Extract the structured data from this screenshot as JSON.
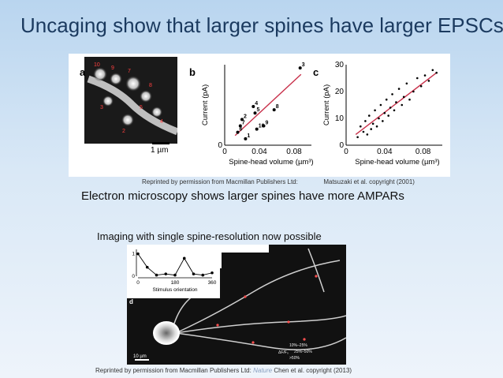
{
  "slide": {
    "title": "Uncaging show that larger spines have larger EPSCs",
    "subtitle_em": "Electron microscopy shows larger spines have more AMPARs",
    "subtitle_imaging": "Imaging with single spine-resolution now possible",
    "credit_top_prefix": "Reprinted by permission from Macmillan Publishers Ltd:",
    "credit_top_suffix": "Matsuzaki et al. copyright (2001)",
    "credit_bottom_prefix": "Reprinted by permission from Macmillan Publishers Ltd:",
    "credit_bottom_journal": "Nature",
    "credit_bottom_suffix": "Chen et al. copyright (2013)"
  },
  "figure_top": {
    "panel_a": {
      "label": "a",
      "scale": "1 µm"
    },
    "panel_b": {
      "label": "b"
    },
    "panel_c": {
      "label": "c"
    }
  },
  "figure_bottom": {
    "panel_d": {
      "label": "d",
      "scale": "10 µm",
      "legend": [
        "10%–25%",
        "25%–50%",
        ">50%"
      ],
      "legend_axis": "ΔF/F₀"
    }
  },
  "chart_data": [
    {
      "type": "scatter",
      "panel": "b",
      "xlabel": "Spine-head volume (µm³)",
      "ylabel": "Current (pA)",
      "xlim": [
        0,
        0.1
      ],
      "ylim": [
        0,
        25
      ],
      "xticks": [
        "0",
        "0.04",
        "0.08"
      ],
      "yticks": [
        "0"
      ],
      "points": [
        {
          "label": "1",
          "x": 0.024,
          "y": 2
        },
        {
          "label": "2",
          "x": 0.02,
          "y": 8
        },
        {
          "label": "3",
          "x": 0.087,
          "y": 24
        },
        {
          "label": "4",
          "x": 0.033,
          "y": 12
        },
        {
          "label": "5",
          "x": 0.035,
          "y": 10
        },
        {
          "label": "6",
          "x": 0.015,
          "y": 4
        },
        {
          "label": "7",
          "x": 0.018,
          "y": 6
        },
        {
          "label": "8",
          "x": 0.057,
          "y": 11
        },
        {
          "label": "9",
          "x": 0.045,
          "y": 6
        },
        {
          "label": "10",
          "x": 0.037,
          "y": 5
        }
      ],
      "fit": [
        [
          0.012,
          3
        ],
        [
          0.088,
          22
        ]
      ]
    },
    {
      "type": "scatter",
      "panel": "c",
      "xlabel": "Spine-head volume (µm³)",
      "ylabel": "Current (pA)",
      "xlim": [
        0,
        0.1
      ],
      "ylim": [
        0,
        30
      ],
      "xticks": [
        "0",
        "0.04",
        "0.08"
      ],
      "yticks": [
        "0",
        "10",
        "20",
        "30"
      ],
      "points": [
        {
          "x": 0.012,
          "y": 3
        },
        {
          "x": 0.015,
          "y": 7
        },
        {
          "x": 0.018,
          "y": 5
        },
        {
          "x": 0.02,
          "y": 9
        },
        {
          "x": 0.022,
          "y": 4
        },
        {
          "x": 0.024,
          "y": 11
        },
        {
          "x": 0.026,
          "y": 6
        },
        {
          "x": 0.028,
          "y": 8
        },
        {
          "x": 0.03,
          "y": 13
        },
        {
          "x": 0.032,
          "y": 7
        },
        {
          "x": 0.034,
          "y": 10
        },
        {
          "x": 0.036,
          "y": 15
        },
        {
          "x": 0.038,
          "y": 9
        },
        {
          "x": 0.04,
          "y": 12
        },
        {
          "x": 0.042,
          "y": 17
        },
        {
          "x": 0.044,
          "y": 11
        },
        {
          "x": 0.046,
          "y": 14
        },
        {
          "x": 0.048,
          "y": 19
        },
        {
          "x": 0.05,
          "y": 13
        },
        {
          "x": 0.052,
          "y": 16
        },
        {
          "x": 0.055,
          "y": 21
        },
        {
          "x": 0.058,
          "y": 15
        },
        {
          "x": 0.06,
          "y": 18
        },
        {
          "x": 0.063,
          "y": 23
        },
        {
          "x": 0.066,
          "y": 17
        },
        {
          "x": 0.07,
          "y": 20
        },
        {
          "x": 0.074,
          "y": 25
        },
        {
          "x": 0.078,
          "y": 22
        },
        {
          "x": 0.082,
          "y": 26
        },
        {
          "x": 0.086,
          "y": 24
        },
        {
          "x": 0.09,
          "y": 28
        },
        {
          "x": 0.094,
          "y": 27
        }
      ],
      "fit": [
        [
          0.01,
          4
        ],
        [
          0.094,
          27
        ]
      ]
    },
    {
      "type": "line",
      "panel": "inset",
      "xlabel": "Stimulus orientation",
      "xticks": [
        "0",
        "180",
        "360"
      ],
      "yticks": [
        "1",
        "0"
      ],
      "xlim": [
        0,
        360
      ],
      "ylim": [
        0,
        1.2
      ],
      "x": [
        0,
        45,
        90,
        135,
        180,
        225,
        270,
        315,
        360
      ],
      "y": [
        1.0,
        0.4,
        0.05,
        0.1,
        0.05,
        0.8,
        0.1,
        0.05,
        0.15
      ]
    }
  ],
  "colors": {
    "fit_line": "#c8304a",
    "title": "#1b3a5f"
  }
}
